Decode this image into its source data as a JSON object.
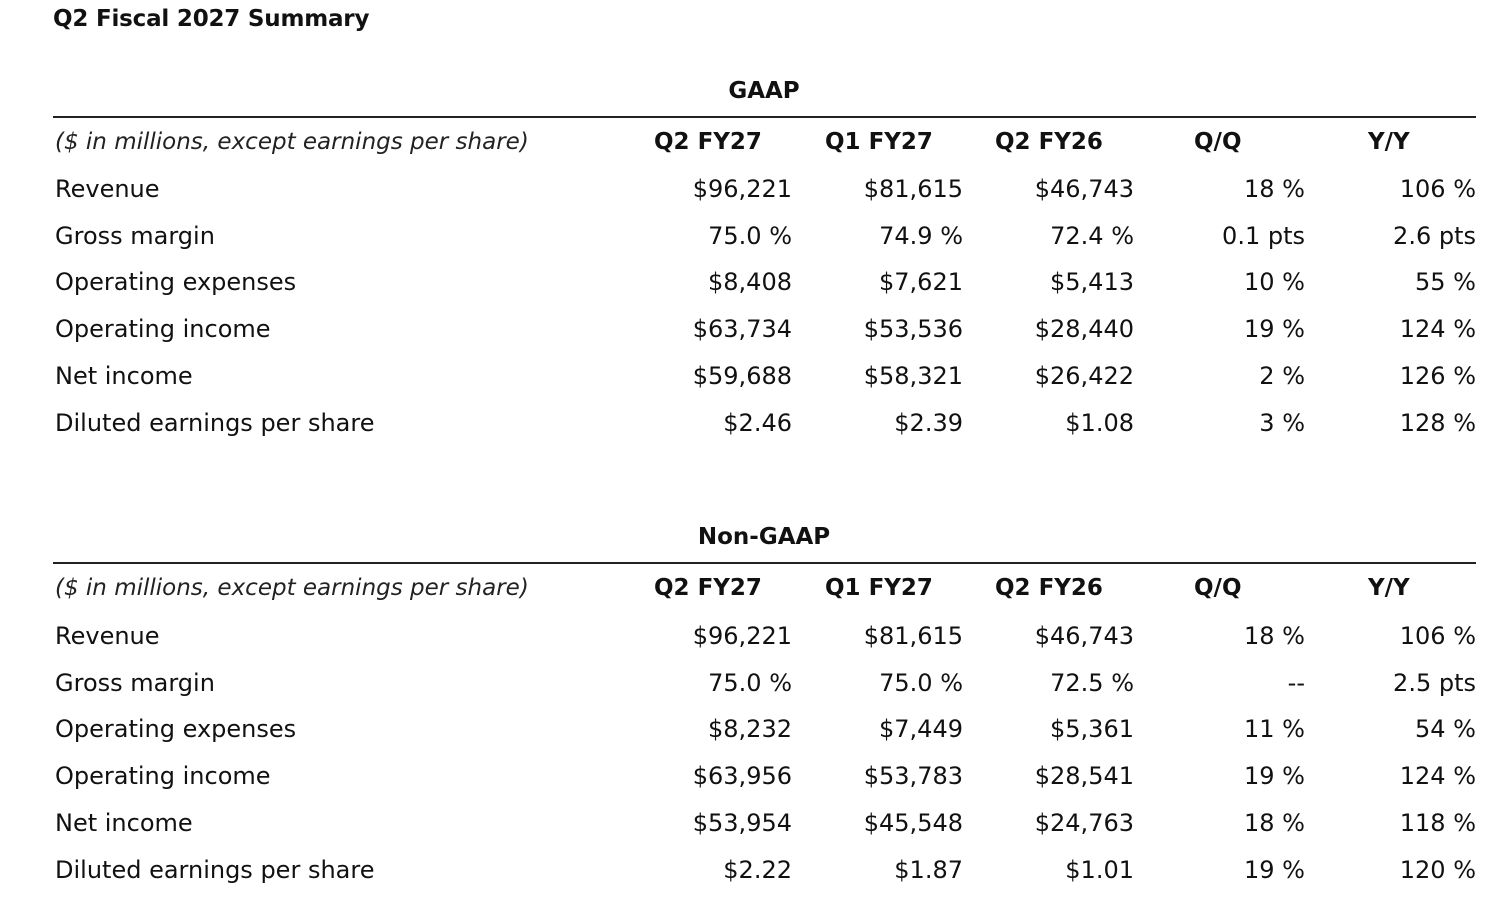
{
  "title": "Q2 Fiscal 2027 Summary",
  "column_note": "($ in millions, except earnings per share)",
  "columns": [
    "Q2 FY27",
    "Q1 FY27",
    "Q2 FY26",
    "Q/Q",
    "Y/Y"
  ],
  "gaap": {
    "heading": "GAAP",
    "rows": [
      {
        "label": "Revenue",
        "values": [
          "$96,221",
          "$81,615",
          "$46,743",
          "18 %",
          "106 %"
        ]
      },
      {
        "label": "Gross margin",
        "values": [
          "75.0 %",
          "74.9 %",
          "72.4 %",
          "0.1 pts",
          "2.6 pts"
        ]
      },
      {
        "label": "Operating expenses",
        "values": [
          "$8,408",
          "$7,621",
          "$5,413",
          "10 %",
          "55 %"
        ]
      },
      {
        "label": "Operating income",
        "values": [
          "$63,734",
          "$53,536",
          "$28,440",
          "19 %",
          "124 %"
        ]
      },
      {
        "label": "Net income",
        "values": [
          "$59,688",
          "$58,321",
          "$26,422",
          "2 %",
          "126 %"
        ]
      },
      {
        "label": "Diluted earnings per share",
        "values": [
          "$2.46",
          "$2.39",
          "$1.08",
          "3 %",
          "128 %"
        ]
      }
    ]
  },
  "non_gaap": {
    "heading": "Non-GAAP",
    "rows": [
      {
        "label": "Revenue",
        "values": [
          "$96,221",
          "$81,615",
          "$46,743",
          "18 %",
          "106 %"
        ]
      },
      {
        "label": "Gross margin",
        "values": [
          "75.0 %",
          "75.0 %",
          "72.5 %",
          "--",
          "2.5 pts"
        ]
      },
      {
        "label": "Operating expenses",
        "values": [
          "$8,232",
          "$7,449",
          "$5,361",
          "11 %",
          "54 %"
        ]
      },
      {
        "label": "Operating income",
        "values": [
          "$63,956",
          "$53,783",
          "$28,541",
          "19 %",
          "124 %"
        ]
      },
      {
        "label": "Net income",
        "values": [
          "$53,954",
          "$45,548",
          "$24,763",
          "18 %",
          "118 %"
        ]
      },
      {
        "label": "Diluted earnings per share",
        "values": [
          "$2.22",
          "$1.87",
          "$1.01",
          "19 %",
          "120 %"
        ]
      }
    ]
  }
}
